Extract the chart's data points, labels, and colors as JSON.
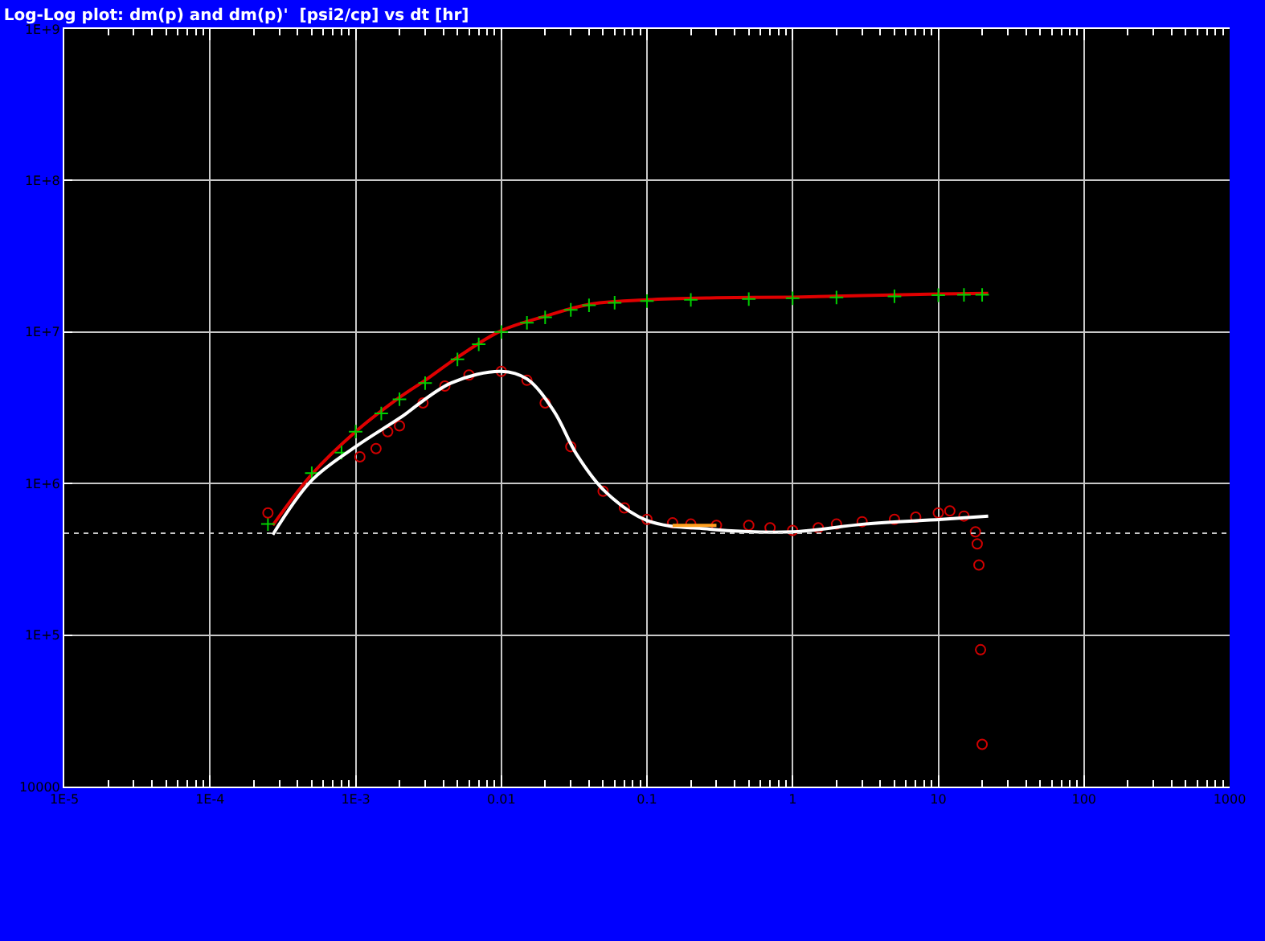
{
  "chart_data": {
    "type": "scatter",
    "title": "Log-Log plot: dm(p) and dm(p)'  [psi2/cp] vs dt [hr]",
    "log": "xy",
    "grid": true,
    "xlim": [
      1e-05,
      1000
    ],
    "ylim": [
      10000,
      1000000000
    ],
    "xticks": [
      {
        "value": 1e-05,
        "label": "1E-5"
      },
      {
        "value": 0.0001,
        "label": "1E-4"
      },
      {
        "value": 0.001,
        "label": "1E-3"
      },
      0.01,
      0.1,
      1,
      10,
      100,
      1000
    ],
    "yticks": [
      10000,
      {
        "value": 100000,
        "label": "1E+5"
      },
      {
        "value": 1000000,
        "label": "1E+6"
      },
      {
        "value": 10000000,
        "label": "1E+7"
      },
      {
        "value": 100000000,
        "label": "1E+8"
      },
      {
        "value": 1000000000,
        "label": "1E+9"
      }
    ],
    "ref_lines": [
      {
        "axis": "y",
        "value": 470000,
        "color": "#c8c8c8",
        "line_style": "dotted"
      }
    ],
    "series": [
      {
        "type": "line",
        "color": "#e00000",
        "x": [
          0.00027,
          0.0005,
          0.001,
          0.002,
          0.003,
          0.005,
          0.01,
          0.02,
          0.04,
          0.1,
          0.3,
          1,
          3,
          10,
          22
        ],
        "values": [
          530000,
          1150000,
          2200000,
          3700000,
          4800000,
          6800000,
          10200000,
          12700000,
          15200000,
          16300000,
          16800000,
          17000000,
          17400000,
          17800000,
          18000000
        ]
      },
      {
        "marker": "cross",
        "color": "#00d000",
        "x": [
          0.00025,
          0.0005,
          0.0008,
          0.001,
          0.0015,
          0.002,
          0.003,
          0.005,
          0.007,
          0.01,
          0.015,
          0.02,
          0.03,
          0.04,
          0.06,
          0.1,
          0.2,
          0.5,
          1,
          2,
          5,
          10,
          15,
          20
        ],
        "values": [
          540000,
          1170000,
          1600000,
          2200000,
          2900000,
          3600000,
          4600000,
          6600000,
          8300000,
          10000000,
          11500000,
          12500000,
          14000000,
          15000000,
          15600000,
          16000000,
          16300000,
          16500000,
          16700000,
          16900000,
          17200000,
          17500000,
          17600000,
          17600000
        ]
      },
      {
        "marker": "circle",
        "color": "#d00000",
        "x": [
          0.00025,
          0.00107,
          0.00138,
          0.00166,
          0.002,
          0.0029,
          0.0041,
          0.006,
          0.01,
          0.015,
          0.02,
          0.03,
          0.05,
          0.07,
          0.1,
          0.15,
          0.2,
          0.3,
          0.5,
          0.7,
          1,
          1.5,
          2,
          3,
          5,
          7,
          10,
          12,
          15,
          18,
          18.5,
          19,
          19.5,
          20
        ],
        "values": [
          640000,
          1500000,
          1700000,
          2200000,
          2400000,
          3400000,
          4400000,
          5200000,
          5500000,
          4800000,
          3400000,
          1750000,
          890000,
          690000,
          580000,
          550000,
          540000,
          530000,
          530000,
          510000,
          490000,
          510000,
          540000,
          560000,
          580000,
          600000,
          640000,
          660000,
          610000,
          480000,
          400000,
          290000,
          80000,
          19000
        ]
      },
      {
        "type": "line",
        "color": "#ffffff",
        "x": [
          0.00027,
          0.0005,
          0.001,
          0.002,
          0.0045,
          0.01,
          0.015,
          0.023,
          0.033,
          0.052,
          0.1,
          0.27,
          1,
          3.1,
          10.5,
          22
        ],
        "values": [
          460000,
          1050000,
          1750000,
          2700000,
          4600000,
          5500000,
          4900000,
          3000000,
          1550000,
          880000,
          570000,
          500000,
          480000,
          540000,
          580000,
          610000
        ]
      },
      {
        "type": "line",
        "color": "#ffa020",
        "x": [
          0.15,
          0.3
        ],
        "values": [
          530000,
          530000
        ]
      }
    ]
  }
}
